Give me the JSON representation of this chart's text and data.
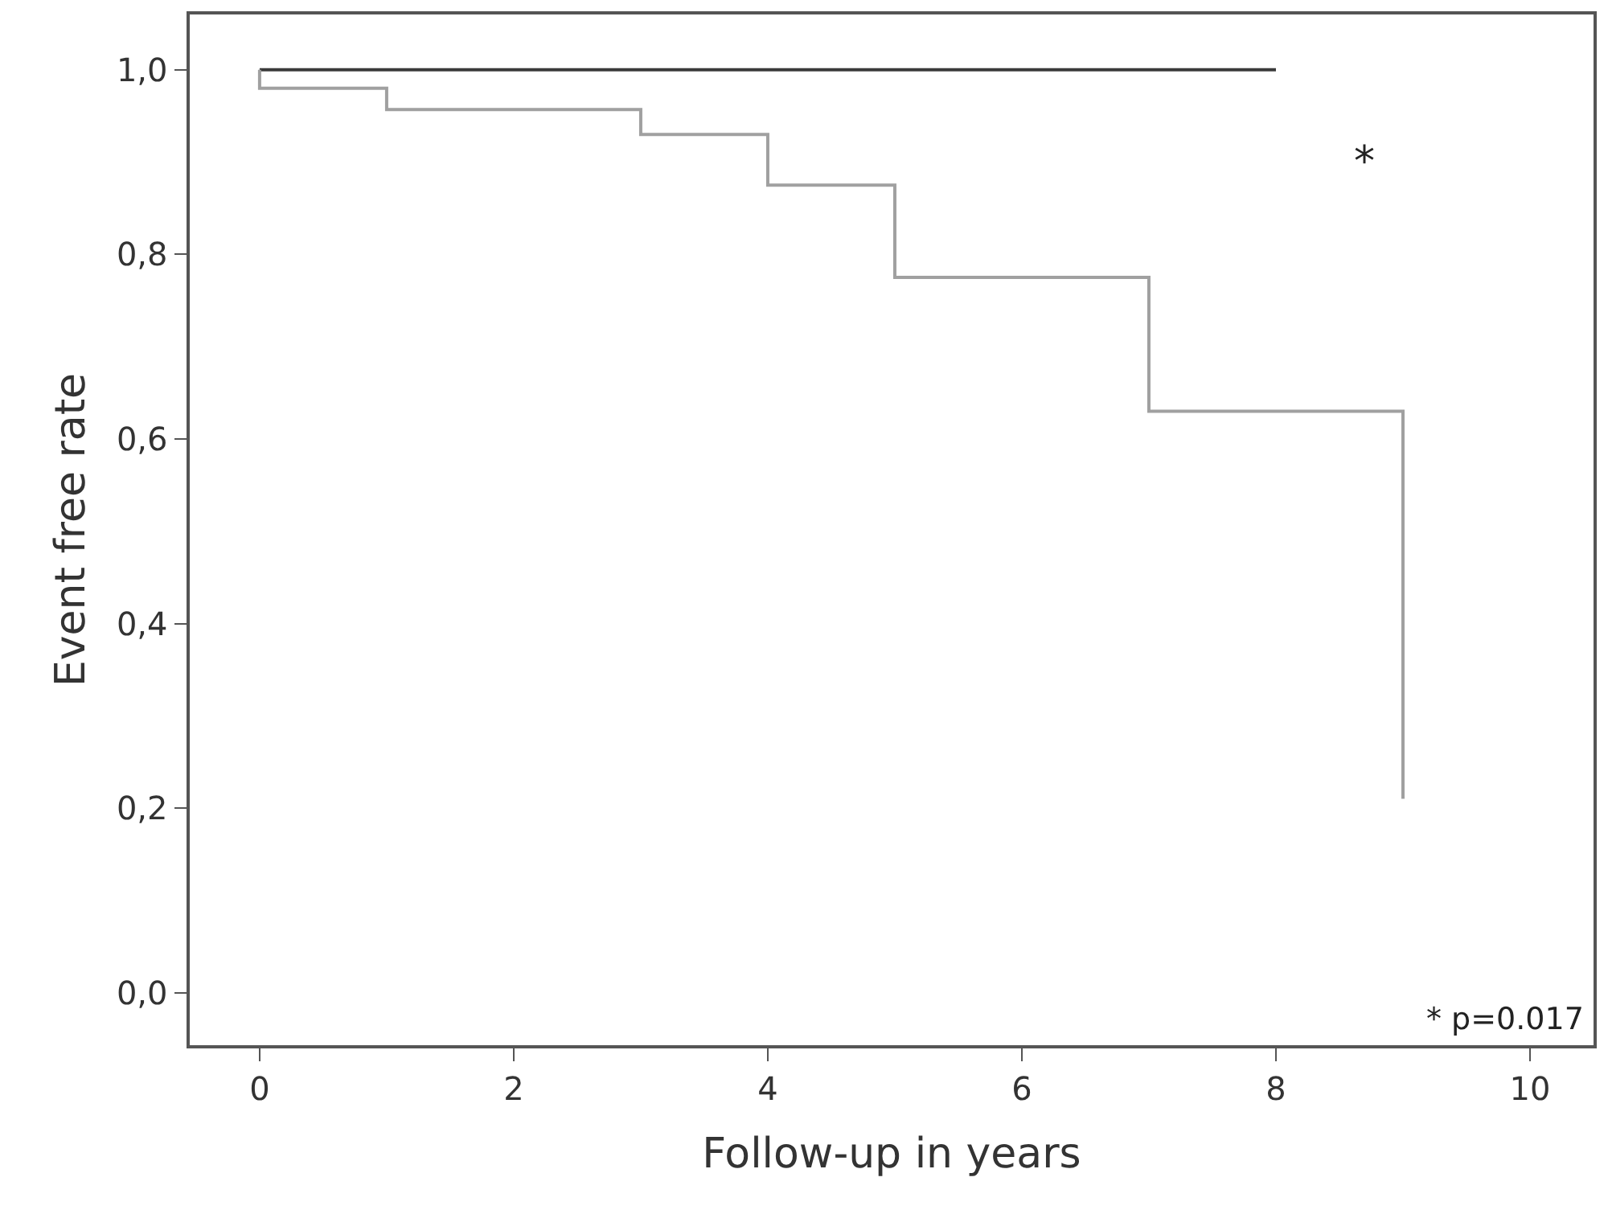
{
  "chart_data": {
    "type": "step",
    "xlabel": "Follow-up in years",
    "ylabel": "Event free rate",
    "series": [
      {
        "color": "#3a3a3a",
        "x": [
          0,
          8
        ],
        "values": [
          1,
          1
        ]
      },
      {
        "color": "#a0a0a0",
        "x": [
          0,
          0,
          1,
          3,
          4,
          5,
          7,
          9,
          9
        ],
        "values": [
          1,
          0.98,
          0.957,
          0.93,
          0.875,
          0.775,
          0.63,
          0.63,
          0.21
        ]
      }
    ],
    "xlim": [
      -0.55,
      10.5
    ],
    "xticks": [
      0,
      2,
      4,
      6,
      8,
      10
    ],
    "ylim": [
      -0.057,
      1.06
    ],
    "yticks": [
      {
        "value": 0,
        "label": "0,0"
      },
      {
        "value": 0.2,
        "label": "0,2"
      },
      {
        "value": 0.4,
        "label": "0,4"
      },
      {
        "value": 0.6,
        "label": "0,6"
      },
      {
        "value": 0.8,
        "label": "0,8"
      },
      {
        "value": 1,
        "label": "1,0"
      }
    ],
    "annotations": [
      "*",
      "* p=0.017"
    ],
    "grid": false,
    "marker": "none",
    "line_style": "solid"
  }
}
